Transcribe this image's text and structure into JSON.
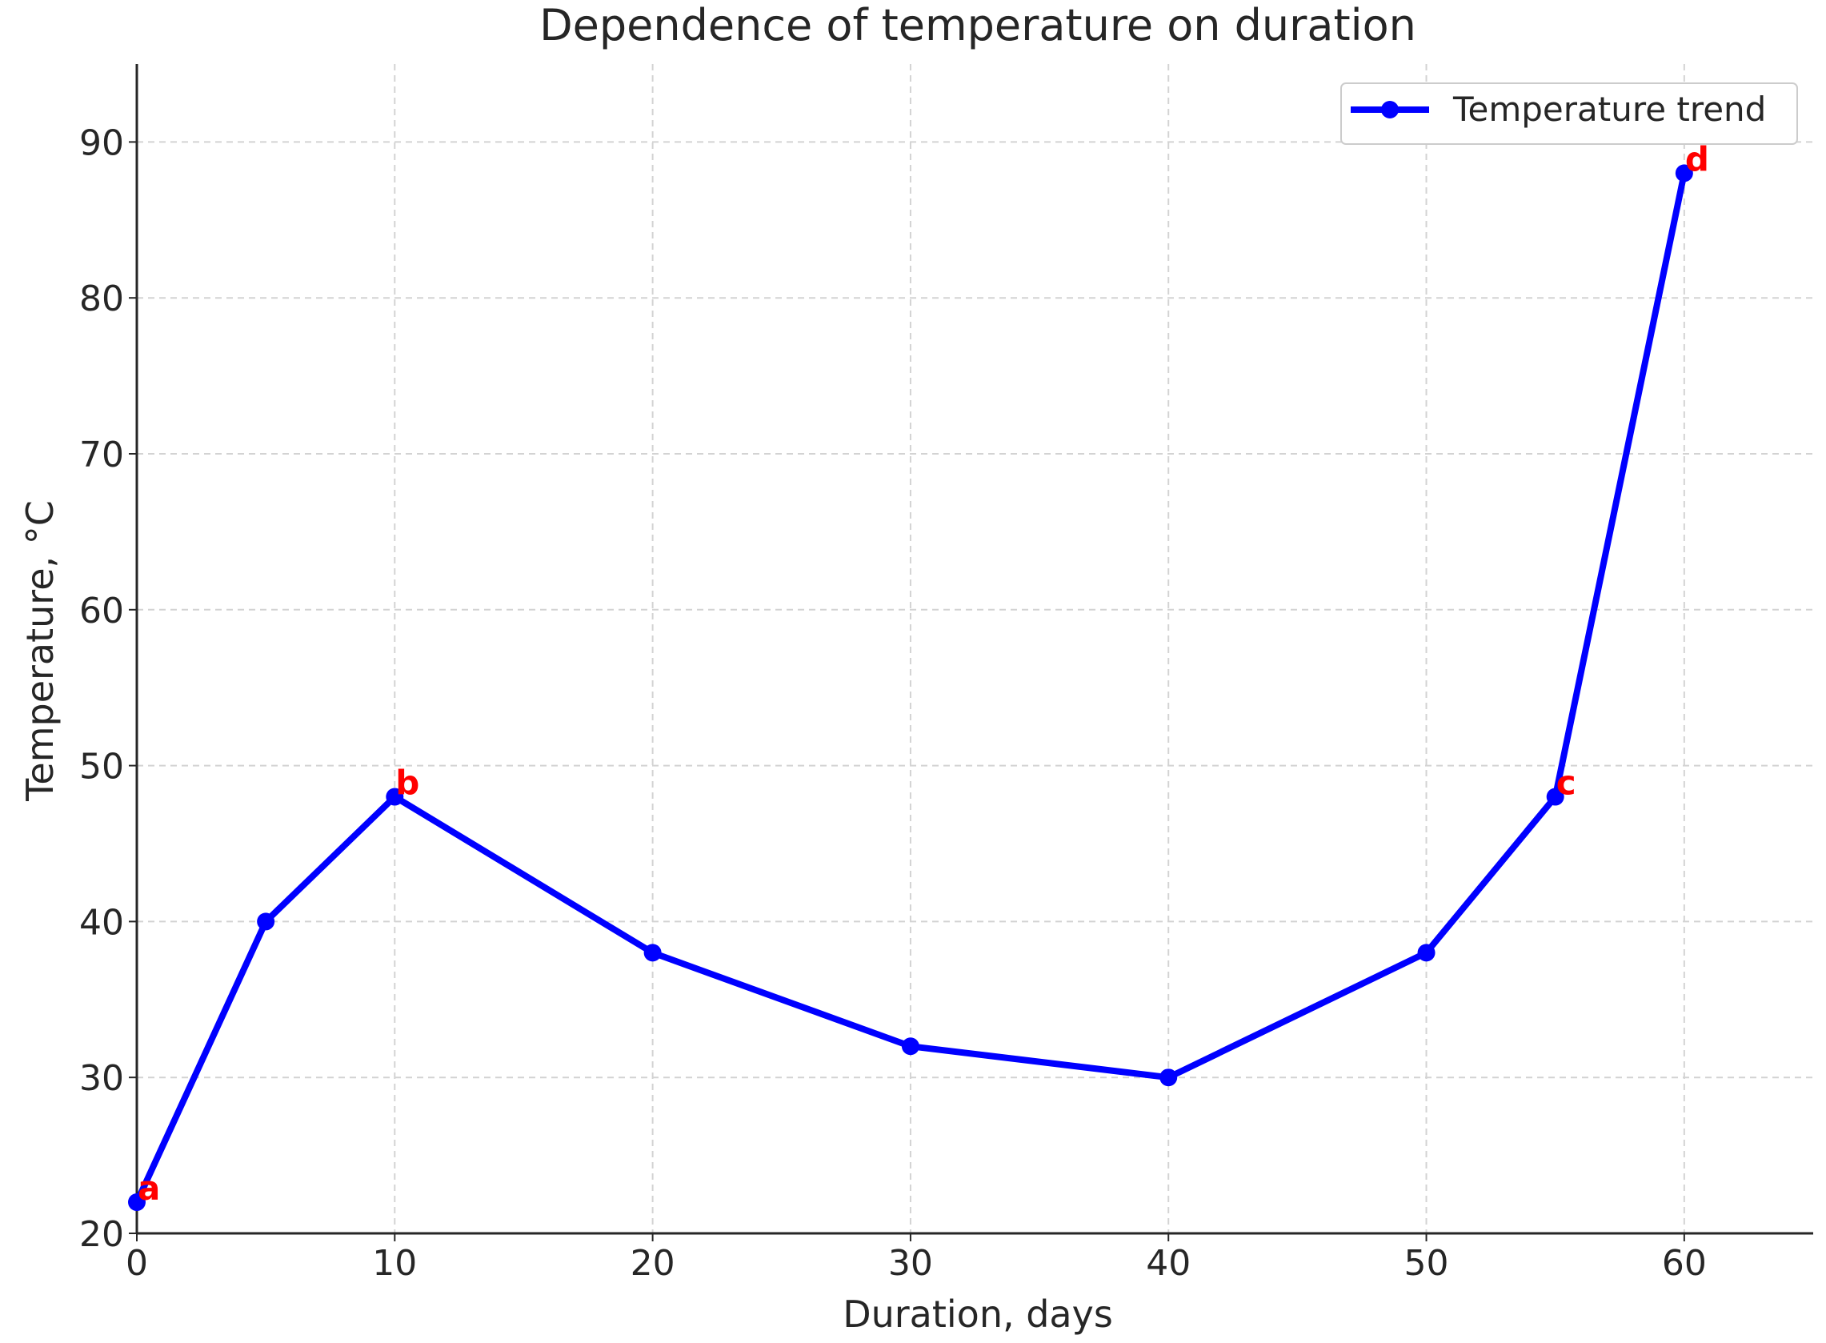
{
  "chart_data": {
    "type": "line",
    "title": "Dependence of temperature on duration",
    "xlabel": "Duration, days",
    "ylabel": "Temperature, °C",
    "xlim": [
      0,
      65
    ],
    "ylim": [
      20,
      95
    ],
    "xticks": [
      0,
      10,
      20,
      30,
      40,
      50,
      60
    ],
    "yticks": [
      20,
      30,
      40,
      50,
      60,
      70,
      80,
      90
    ],
    "grid": true,
    "legend_position": "top-right",
    "series": [
      {
        "name": "Temperature trend",
        "color": "#0000ff",
        "marker": "circle",
        "x": [
          0,
          5,
          10,
          20,
          30,
          40,
          50,
          55,
          60
        ],
        "y": [
          22,
          40,
          48,
          38,
          32,
          30,
          38,
          48,
          88
        ]
      }
    ],
    "annotations": [
      {
        "text": "a",
        "x": 0,
        "y": 22,
        "color": "#ff0000"
      },
      {
        "text": "b",
        "x": 10,
        "y": 48,
        "color": "#ff0000"
      },
      {
        "text": "c",
        "x": 55,
        "y": 48,
        "color": "#ff0000"
      },
      {
        "text": "d",
        "x": 60,
        "y": 88,
        "color": "#ff0000"
      }
    ]
  }
}
